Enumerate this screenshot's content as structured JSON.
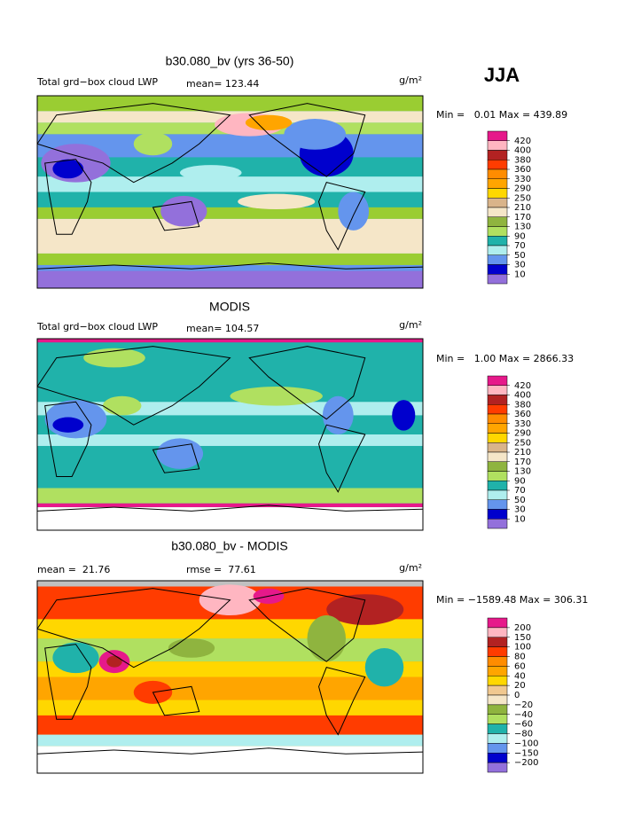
{
  "title_right": "JJA",
  "panels": [
    {
      "title": "b30.080_bv (yrs 36-50)",
      "left_label": "Total grd−box cloud LWP",
      "mean": "mean= 123.44",
      "units": "g/m²",
      "minmax": "Min =   0.01 Max = 439.89",
      "colorbar": {
        "colors": [
          "#e6198a",
          "#ffb6c1",
          "#b22222",
          "#ff3c00",
          "#ff8c00",
          "#ffa500",
          "#ffd700",
          "#d9b48a",
          "#f5e6c8",
          "#8fb43f",
          "#b0e060",
          "#20b2aa",
          "#afeeee",
          "#6495ed",
          "#0000cd",
          "#9370db"
        ],
        "levels": [
          420,
          400,
          380,
          360,
          330,
          290,
          250,
          210,
          170,
          130,
          90,
          70,
          50,
          30,
          10
        ]
      }
    },
    {
      "title": "MODIS",
      "left_label": "Total grd−box cloud LWP",
      "mean": "mean= 104.57",
      "units": "g/m²",
      "minmax": "Min =   1.00 Max = 2866.33",
      "colorbar": {
        "colors": [
          "#e6198a",
          "#ffb6c1",
          "#b22222",
          "#ff3c00",
          "#ff8c00",
          "#ffa500",
          "#ffd700",
          "#d9b48a",
          "#f5e6c8",
          "#8fb43f",
          "#b0e060",
          "#20b2aa",
          "#afeeee",
          "#6495ed",
          "#0000cd",
          "#9370db"
        ],
        "levels": [
          420,
          400,
          380,
          360,
          330,
          290,
          250,
          210,
          170,
          130,
          90,
          70,
          50,
          30,
          10
        ]
      }
    },
    {
      "title": "b30.080_bv - MODIS",
      "mean": "mean =  21.76",
      "rmse": "rmse =  77.61",
      "units": "g/m²",
      "minmax": "Min = −1589.48 Max = 306.31",
      "colorbar": {
        "colors": [
          "#e6198a",
          "#ffb6c1",
          "#b22222",
          "#ff3c00",
          "#ff8c00",
          "#ffa500",
          "#ffd700",
          "#f0c890",
          "#f5e6c8",
          "#8fb43f",
          "#b0e060",
          "#20b2aa",
          "#afeeee",
          "#6495ed",
          "#0000cd",
          "#9370db"
        ],
        "levels": [
          200,
          150,
          100,
          80,
          60,
          40,
          20,
          0,
          {
            "value": -20,
            "label": "−20"
          },
          {
            "value": -40,
            "label": "−40"
          },
          {
            "value": -60,
            "label": "−60"
          },
          {
            "value": -80,
            "label": "−80"
          },
          {
            "value": -100,
            "label": "−100"
          },
          {
            "value": -150,
            "label": "−150"
          },
          {
            "value": -200,
            "label": "−200"
          }
        ]
      }
    }
  ]
}
